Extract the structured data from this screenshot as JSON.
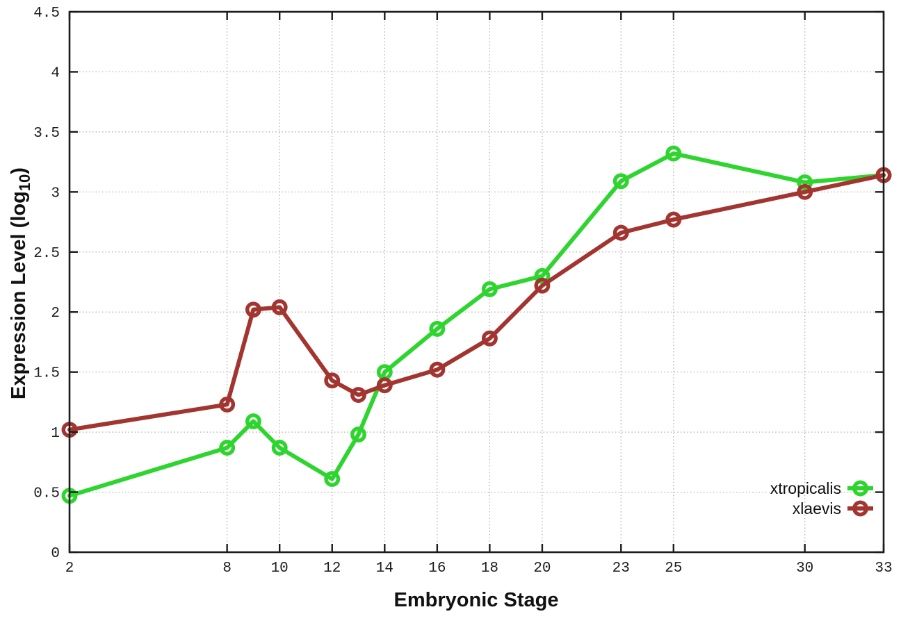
{
  "chart_data": {
    "type": "line",
    "title": "",
    "xlabel": "Embryonic Stage",
    "ylabel": {
      "pre": "Expression Level (log",
      "sub": "10",
      "post": ")"
    },
    "x": [
      2,
      8,
      9,
      10,
      12,
      13,
      14,
      16,
      18,
      20,
      23,
      25,
      30,
      33
    ],
    "series": [
      {
        "name": "xtropicalis",
        "color": "#2ed52e",
        "values": [
          0.47,
          0.87,
          1.09,
          0.87,
          0.61,
          0.98,
          1.5,
          1.86,
          2.19,
          2.3,
          3.09,
          3.32,
          3.08,
          3.14
        ]
      },
      {
        "name": "xlaevis",
        "color": "#a23530",
        "values": [
          1.02,
          1.23,
          2.02,
          2.04,
          1.43,
          1.31,
          1.39,
          1.52,
          1.78,
          2.22,
          2.66,
          2.77,
          3.0,
          3.14
        ]
      }
    ],
    "xticks": [
      2,
      8,
      10,
      12,
      14,
      16,
      18,
      20,
      23,
      25,
      30,
      33
    ],
    "yticks": [
      0,
      0.5,
      1,
      1.5,
      2,
      2.5,
      3,
      3.5,
      4,
      4.5
    ],
    "xlim": [
      2,
      33
    ],
    "ylim": [
      0,
      4.5
    ],
    "grid": true,
    "legend_position": "bottom-right",
    "marker": "open-circle",
    "legend": [
      "xtropicalis",
      "xlaevis"
    ]
  },
  "colors": {
    "axis": "#1c1c1c",
    "grid": "#ababab",
    "tick_label": "#1c1c1c",
    "background": "#ffffff"
  }
}
